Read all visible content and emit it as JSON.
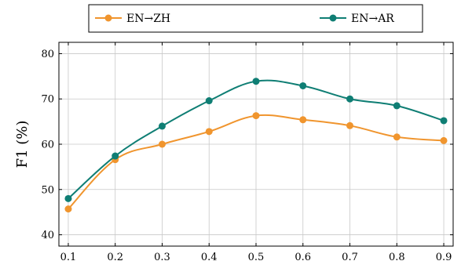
{
  "chart_data": {
    "type": "line",
    "title": "",
    "xlabel": "",
    "ylabel": "F1 (%)",
    "x": [
      0.1,
      0.2,
      0.3,
      0.4,
      0.5,
      0.6,
      0.7,
      0.8,
      0.9
    ],
    "x_tick_labels": [
      "0.1",
      "0.2",
      "0.3",
      "0.4",
      "0.5",
      "0.6",
      "0.7",
      "0.8",
      "0.9"
    ],
    "y_ticks": [
      40,
      50,
      60,
      70,
      80
    ],
    "y_tick_labels": [
      "40",
      "50",
      "60",
      "70",
      "80"
    ],
    "xlim": [
      0.08,
      0.92
    ],
    "ylim": [
      37.5,
      82.5
    ],
    "grid": true,
    "legend_position": "top-outside",
    "series": [
      {
        "name": "EN→ZH",
        "color": "#f0952e",
        "values": [
          45.7,
          56.6,
          60.0,
          62.8,
          66.3,
          65.4,
          64.1,
          61.6,
          60.8
        ]
      },
      {
        "name": "EN→AR",
        "color": "#0f7e74",
        "values": [
          48.0,
          57.4,
          64.0,
          69.6,
          73.9,
          72.9,
          70.0,
          68.5,
          65.2
        ]
      }
    ]
  }
}
